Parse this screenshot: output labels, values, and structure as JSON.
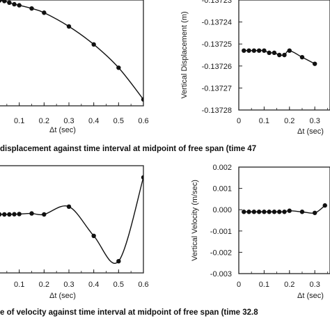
{
  "captions": {
    "top": "displacement against time interval at midpoint of free span (time 47",
    "bottom": "e of velocity against time interval at midpoint of free span (time 32.8"
  },
  "chart_data": [
    {
      "type": "line",
      "xlabel": "Δt (sec)",
      "ylabel": "",
      "xlim": [
        0,
        0.6
      ],
      "x_ticks": [
        "0.1",
        "0.2",
        "0.3",
        "0.4",
        "0.5",
        "0.6"
      ],
      "y_ticks": [],
      "series": [
        {
          "values": [
            [
              0.0,
              1.0
            ],
            [
              0.02,
              0.995
            ],
            [
              0.04,
              0.99
            ],
            [
              0.06,
              0.975
            ],
            [
              0.08,
              0.96
            ],
            [
              0.1,
              0.95
            ],
            [
              0.15,
              0.92
            ],
            [
              0.2,
              0.88
            ],
            [
              0.3,
              0.75
            ],
            [
              0.4,
              0.58
            ],
            [
              0.5,
              0.36
            ],
            [
              0.6,
              0.06
            ]
          ]
        }
      ]
    },
    {
      "type": "line",
      "xlabel": "Δt (sec)",
      "ylabel": "Vertical Displacement (m)",
      "xlim": [
        0,
        0.36
      ],
      "ylim": [
        -0.13728,
        -0.13723
      ],
      "x_ticks": [
        "0",
        "0.1",
        "0.2",
        "0.3"
      ],
      "y_ticks": [
        "-0.13723",
        "-0.13724",
        "-0.13725",
        "-0.13726",
        "-0.13727",
        "-0.13728"
      ],
      "series": [
        {
          "values": [
            [
              0.02,
              -0.137253
            ],
            [
              0.04,
              -0.137253
            ],
            [
              0.06,
              -0.137253
            ],
            [
              0.08,
              -0.137253
            ],
            [
              0.1,
              -0.137253
            ],
            [
              0.12,
              -0.137254
            ],
            [
              0.14,
              -0.137254
            ],
            [
              0.16,
              -0.137255
            ],
            [
              0.18,
              -0.137255
            ],
            [
              0.2,
              -0.137253
            ],
            [
              0.25,
              -0.137256
            ],
            [
              0.3,
              -0.137259
            ]
          ]
        }
      ]
    },
    {
      "type": "line",
      "xlabel": "Δt (sec)",
      "ylabel": "",
      "xlim": [
        0,
        0.6
      ],
      "x_ticks": [
        "0.1",
        "0.2",
        "0.3",
        "0.4",
        "0.5",
        "0.6"
      ],
      "y_ticks": [],
      "series": [
        {
          "values": [
            [
              0.0,
              0.0
            ],
            [
              0.02,
              0.0
            ],
            [
              0.04,
              0.0
            ],
            [
              0.06,
              0.0
            ],
            [
              0.08,
              0.001
            ],
            [
              0.1,
              0.002
            ],
            [
              0.15,
              0.005
            ],
            [
              0.2,
              0.0
            ],
            [
              0.3,
              0.04
            ],
            [
              0.4,
              -0.11
            ],
            [
              0.5,
              -0.24
            ],
            [
              0.6,
              0.19
            ]
          ]
        }
      ]
    },
    {
      "type": "line",
      "xlabel": "Δt (sec)",
      "ylabel": "Vertical Velocity (m/sec)",
      "xlim": [
        0,
        0.36
      ],
      "ylim": [
        -0.003,
        0.002
      ],
      "x_ticks": [
        "0",
        "0.1",
        "0.2",
        "0.3"
      ],
      "y_ticks": [
        "0.002",
        "0.001",
        "0.000",
        "-0.001",
        "-0.002",
        "-0.003"
      ],
      "series": [
        {
          "values": [
            [
              0.02,
              -0.0001
            ],
            [
              0.04,
              -0.0001
            ],
            [
              0.06,
              -0.0001
            ],
            [
              0.08,
              -0.0001
            ],
            [
              0.1,
              -0.0001
            ],
            [
              0.12,
              -0.0001
            ],
            [
              0.14,
              -0.0001
            ],
            [
              0.16,
              -0.0001
            ],
            [
              0.18,
              -0.0001
            ],
            [
              0.2,
              -5e-05
            ],
            [
              0.25,
              -0.0001
            ],
            [
              0.3,
              -0.00015
            ],
            [
              0.34,
              0.0002
            ]
          ]
        }
      ]
    }
  ]
}
